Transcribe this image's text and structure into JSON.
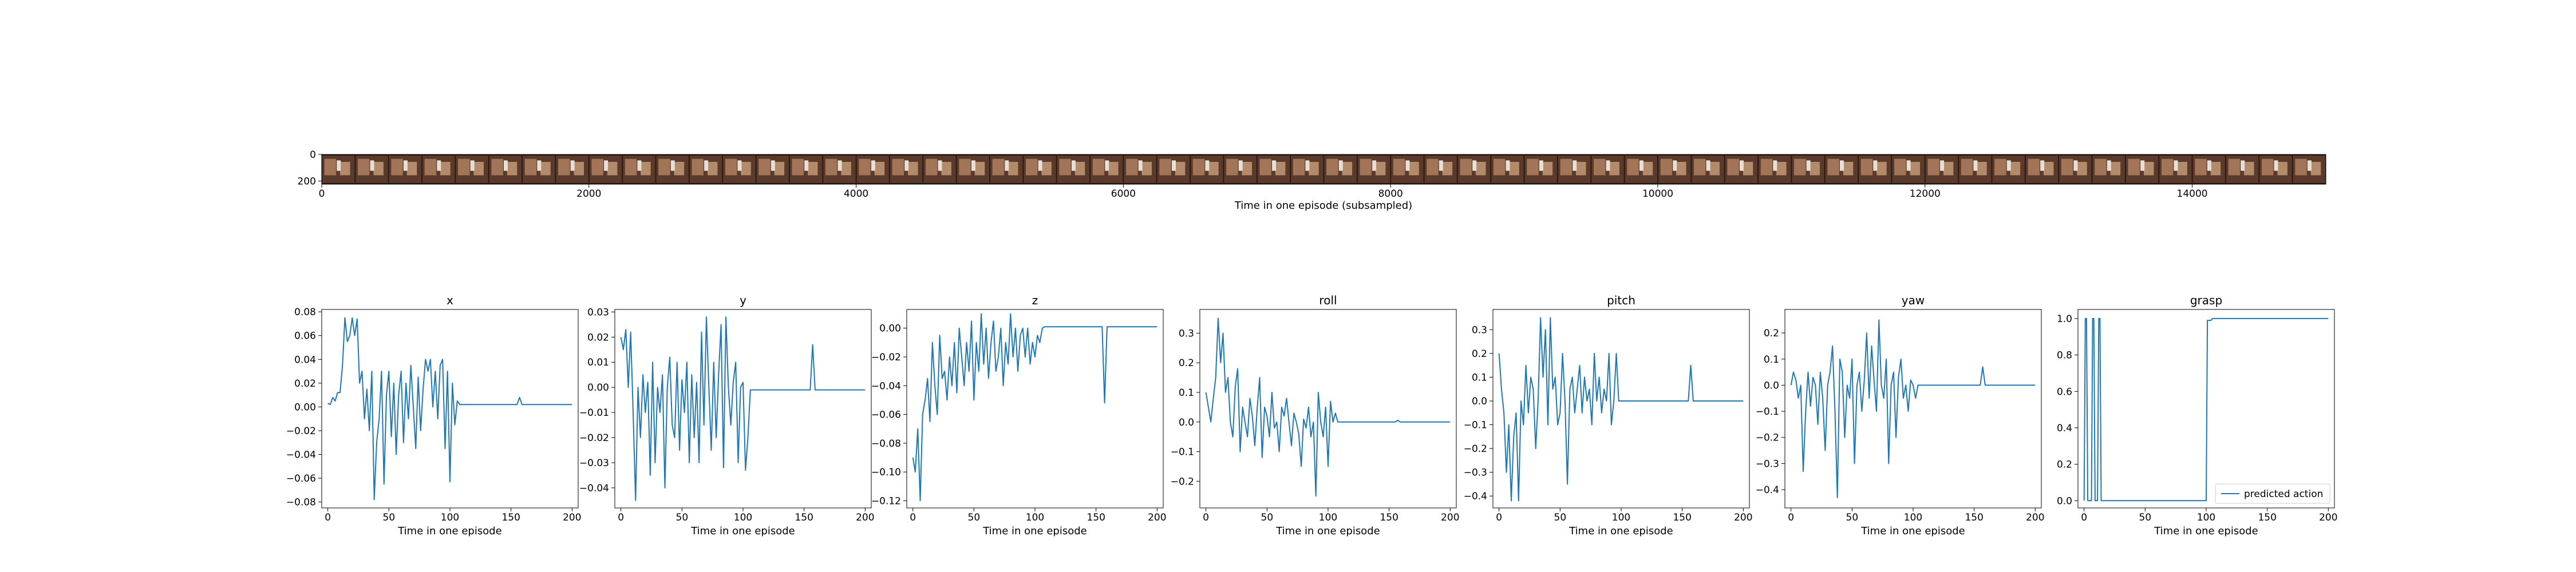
{
  "colors": {
    "line": "#1f77b4",
    "axes": "#000000",
    "frame_bg": "#2a1a14",
    "frame_light": "#b08060"
  },
  "filmstrip": {
    "xlabel": "Time in one episode (subsampled)",
    "xticks": [
      0,
      2000,
      4000,
      6000,
      8000,
      10000,
      12000,
      14000
    ],
    "yticks": [
      0,
      200
    ],
    "xlim": [
      0,
      15000
    ],
    "ylim": [
      0,
      224
    ],
    "frame_count": 60
  },
  "chart_data": [
    {
      "type": "line",
      "title": "x",
      "xlabel": "Time in one episode",
      "ylabel": "",
      "xlim": [
        -5,
        205
      ],
      "ylim": [
        -0.085,
        0.082
      ],
      "xticks": [
        0,
        50,
        100,
        150,
        200
      ],
      "yticks": [
        -0.08,
        -0.06,
        -0.04,
        -0.02,
        0.0,
        0.02,
        0.04,
        0.06,
        0.08
      ],
      "ytick_labels": [
        "−0.08",
        "−0.06",
        "−0.04",
        "−0.02",
        "0.00",
        "0.02",
        "0.04",
        "0.06",
        "0.08"
      ],
      "series": [
        {
          "x": [
            0,
            2,
            4,
            6,
            8,
            10,
            12,
            14,
            16,
            18,
            20,
            22,
            24,
            26,
            28,
            30,
            32,
            34,
            36,
            38,
            40,
            42,
            44,
            46,
            48,
            50,
            52,
            54,
            56,
            58,
            60,
            62,
            64,
            66,
            68,
            70,
            72,
            74,
            76,
            78,
            80,
            82,
            84,
            86,
            88,
            90,
            92,
            94,
            96,
            98,
            100,
            102,
            104,
            106,
            108,
            110,
            120,
            140,
            155,
            157,
            159,
            170,
            185,
            200
          ],
          "y": [
            0.003,
            0.002,
            0.008,
            0.005,
            0.012,
            0.012,
            0.035,
            0.075,
            0.055,
            0.06,
            0.075,
            0.06,
            0.074,
            0.02,
            0.03,
            -0.01,
            0.015,
            -0.02,
            0.03,
            -0.078,
            -0.03,
            -0.01,
            0.03,
            -0.065,
            0.01,
            0.03,
            -0.025,
            0.02,
            -0.04,
            0.01,
            0.03,
            -0.03,
            0.02,
            -0.01,
            0.035,
            0.0,
            -0.035,
            0.025,
            -0.02,
            0.015,
            0.04,
            0.03,
            0.04,
            0.0,
            0.03,
            -0.01,
            0.035,
            0.04,
            -0.035,
            0.03,
            -0.063,
            0.02,
            -0.015,
            0.005,
            0.002,
            0.002,
            0.002,
            0.002,
            0.002,
            0.008,
            0.002,
            0.002,
            0.002,
            0.002
          ]
        }
      ]
    },
    {
      "type": "line",
      "title": "y",
      "xlabel": "Time in one episode",
      "ylabel": "",
      "xlim": [
        -5,
        205
      ],
      "ylim": [
        -0.048,
        0.031
      ],
      "xticks": [
        0,
        50,
        100,
        150,
        200
      ],
      "yticks": [
        -0.04,
        -0.03,
        -0.02,
        -0.01,
        0.0,
        0.01,
        0.02,
        0.03
      ],
      "ytick_labels": [
        "−0.04",
        "−0.03",
        "−0.02",
        "−0.01",
        "0.00",
        "0.01",
        "0.02",
        "0.03"
      ],
      "series": [
        {
          "x": [
            0,
            2,
            4,
            6,
            8,
            10,
            12,
            14,
            16,
            18,
            20,
            22,
            24,
            26,
            28,
            30,
            32,
            34,
            36,
            38,
            40,
            42,
            44,
            46,
            48,
            50,
            52,
            54,
            56,
            58,
            60,
            62,
            64,
            66,
            68,
            70,
            72,
            74,
            76,
            78,
            80,
            82,
            84,
            86,
            88,
            90,
            92,
            94,
            96,
            98,
            100,
            102,
            104,
            106,
            110,
            130,
            155,
            157,
            159,
            170,
            185,
            200
          ],
          "y": [
            0.02,
            0.015,
            0.023,
            0.0,
            0.022,
            -0.01,
            -0.045,
            0.0,
            -0.02,
            0.005,
            -0.01,
            0.002,
            -0.035,
            0.01,
            -0.03,
            0.0,
            -0.01,
            0.005,
            -0.04,
            0.0,
            0.012,
            -0.015,
            -0.02,
            0.01,
            -0.025,
            0.003,
            -0.01,
            0.01,
            -0.03,
            0.005,
            -0.02,
            0.002,
            -0.03,
            0.022,
            -0.015,
            0.028,
            0.0,
            -0.025,
            0.01,
            -0.02,
            0.005,
            0.025,
            -0.032,
            0.028,
            0.0,
            -0.015,
            0.002,
            0.01,
            -0.03,
            0.0,
            0.002,
            -0.033,
            -0.02,
            -0.001,
            -0.001,
            -0.001,
            -0.001,
            0.017,
            -0.001,
            -0.001,
            -0.001,
            -0.001
          ]
        }
      ]
    },
    {
      "type": "line",
      "title": "z",
      "xlabel": "Time in one episode",
      "ylabel": "",
      "xlim": [
        -5,
        205
      ],
      "ylim": [
        -0.125,
        0.013
      ],
      "xticks": [
        0,
        50,
        100,
        150,
        200
      ],
      "yticks": [
        -0.12,
        -0.1,
        -0.08,
        -0.06,
        -0.04,
        -0.02,
        0.0
      ],
      "ytick_labels": [
        "−0.12",
        "−0.10",
        "−0.08",
        "−0.06",
        "−0.04",
        "−0.02",
        "0.00"
      ],
      "series": [
        {
          "x": [
            0,
            2,
            4,
            6,
            8,
            10,
            12,
            14,
            16,
            18,
            20,
            22,
            24,
            26,
            28,
            30,
            32,
            34,
            36,
            38,
            40,
            42,
            44,
            46,
            48,
            50,
            52,
            54,
            56,
            58,
            60,
            62,
            64,
            66,
            68,
            70,
            72,
            74,
            76,
            78,
            80,
            82,
            84,
            86,
            88,
            90,
            92,
            94,
            96,
            98,
            100,
            102,
            104,
            106,
            108,
            110,
            130,
            155,
            157,
            159,
            161,
            170,
            185,
            200
          ],
          "y": [
            -0.09,
            -0.1,
            -0.07,
            -0.12,
            -0.06,
            -0.05,
            -0.035,
            -0.065,
            -0.01,
            -0.04,
            -0.06,
            -0.005,
            -0.035,
            -0.03,
            -0.05,
            -0.02,
            -0.04,
            -0.01,
            -0.045,
            0.0,
            -0.02,
            -0.04,
            -0.01,
            -0.03,
            0.005,
            -0.05,
            -0.01,
            -0.03,
            0.01,
            -0.025,
            0.0,
            -0.035,
            -0.01,
            0.005,
            -0.03,
            -0.02,
            0.0,
            -0.04,
            -0.01,
            -0.025,
            0.01,
            -0.02,
            0.0,
            -0.03,
            -0.005,
            0.0,
            -0.02,
            0.0,
            -0.025,
            -0.01,
            -0.02,
            -0.005,
            -0.01,
            0.0,
            0.001,
            0.001,
            0.001,
            0.001,
            -0.052,
            0.001,
            0.001,
            0.001,
            0.001,
            0.001
          ]
        }
      ]
    },
    {
      "type": "line",
      "title": "roll",
      "xlabel": "Time in one episode",
      "ylabel": "",
      "xlim": [
        -5,
        205
      ],
      "ylim": [
        -0.29,
        0.38
      ],
      "xticks": [
        0,
        50,
        100,
        150,
        200
      ],
      "yticks": [
        -0.2,
        -0.1,
        0.0,
        0.1,
        0.2,
        0.3
      ],
      "ytick_labels": [
        "−0.2",
        "−0.1",
        "0.0",
        "0.1",
        "0.2",
        "0.3"
      ],
      "series": [
        {
          "x": [
            0,
            2,
            4,
            6,
            8,
            10,
            12,
            14,
            16,
            18,
            20,
            22,
            24,
            26,
            28,
            30,
            32,
            34,
            36,
            38,
            40,
            42,
            44,
            46,
            48,
            50,
            52,
            54,
            56,
            58,
            60,
            62,
            64,
            66,
            68,
            70,
            72,
            74,
            76,
            78,
            80,
            82,
            84,
            86,
            88,
            90,
            92,
            94,
            96,
            98,
            100,
            102,
            104,
            106,
            108,
            110,
            130,
            155,
            157,
            159,
            170,
            185,
            200
          ],
          "y": [
            0.1,
            0.05,
            0.0,
            0.08,
            0.15,
            0.35,
            0.2,
            0.3,
            0.1,
            0.15,
            0.0,
            -0.05,
            0.12,
            0.18,
            -0.1,
            0.05,
            0.0,
            -0.05,
            0.08,
            0.02,
            -0.08,
            0.05,
            0.15,
            -0.12,
            0.05,
            0.02,
            -0.05,
            0.1,
            -0.02,
            0.0,
            -0.1,
            0.05,
            0.02,
            0.08,
            0.0,
            -0.08,
            0.03,
            0.0,
            -0.04,
            -0.15,
            0.01,
            -0.02,
            0.05,
            -0.05,
            0.0,
            -0.25,
            0.1,
            0.0,
            -0.05,
            0.05,
            -0.15,
            0.07,
            0.0,
            0.03,
            0.0,
            0.0,
            0.0,
            0.0,
            0.006,
            0.0,
            0.0,
            0.0,
            0.0
          ]
        }
      ]
    },
    {
      "type": "line",
      "title": "pitch",
      "xlabel": "Time in one episode",
      "ylabel": "",
      "xlim": [
        -5,
        205
      ],
      "ylim": [
        -0.45,
        0.385
      ],
      "xticks": [
        0,
        50,
        100,
        150,
        200
      ],
      "yticks": [
        -0.4,
        -0.3,
        -0.2,
        -0.1,
        0.0,
        0.1,
        0.2,
        0.3
      ],
      "ytick_labels": [
        "−0.4",
        "−0.3",
        "−0.2",
        "−0.1",
        "0.0",
        "0.1",
        "0.2",
        "0.3"
      ],
      "series": [
        {
          "x": [
            0,
            2,
            4,
            6,
            8,
            10,
            12,
            14,
            16,
            18,
            20,
            22,
            24,
            26,
            28,
            30,
            32,
            34,
            36,
            38,
            40,
            42,
            44,
            46,
            48,
            50,
            52,
            54,
            56,
            58,
            60,
            62,
            64,
            66,
            68,
            70,
            72,
            74,
            76,
            78,
            80,
            82,
            84,
            86,
            88,
            90,
            92,
            94,
            96,
            98,
            100,
            102,
            104,
            106,
            108,
            110,
            130,
            155,
            157,
            159,
            170,
            185,
            200
          ],
          "y": [
            0.2,
            0.05,
            -0.05,
            -0.3,
            -0.1,
            -0.42,
            -0.15,
            -0.05,
            -0.42,
            0.0,
            -0.1,
            0.15,
            -0.05,
            0.1,
            0.05,
            -0.2,
            0.0,
            0.35,
            0.1,
            0.3,
            -0.1,
            0.35,
            0.05,
            0.1,
            -0.1,
            -0.05,
            0.2,
            0.0,
            -0.35,
            0.05,
            0.1,
            -0.05,
            0.05,
            0.15,
            -0.05,
            0.1,
            0.0,
            0.05,
            -0.1,
            0.2,
            0.0,
            0.1,
            -0.05,
            0.05,
            0.0,
            0.2,
            -0.1,
            0.0,
            0.2,
            0.0,
            0.0,
            0.0,
            0.0,
            0.0,
            0.0,
            0.0,
            0.0,
            0.0,
            0.15,
            0.0,
            0.0,
            0.0,
            0.0
          ]
        }
      ]
    },
    {
      "type": "line",
      "title": "yaw",
      "xlabel": "Time in one episode",
      "ylabel": "",
      "xlim": [
        -5,
        205
      ],
      "ylim": [
        -0.47,
        0.29
      ],
      "xticks": [
        0,
        50,
        100,
        150,
        200
      ],
      "yticks": [
        -0.4,
        -0.3,
        -0.2,
        -0.1,
        0.0,
        0.1,
        0.2
      ],
      "ytick_labels": [
        "−0.4",
        "−0.3",
        "−0.2",
        "−0.1",
        "0.0",
        "0.1",
        "0.2"
      ],
      "series": [
        {
          "x": [
            0,
            2,
            4,
            6,
            8,
            10,
            12,
            14,
            16,
            18,
            20,
            22,
            24,
            26,
            28,
            30,
            32,
            34,
            36,
            38,
            40,
            42,
            44,
            46,
            48,
            50,
            52,
            54,
            56,
            58,
            60,
            62,
            64,
            66,
            68,
            70,
            72,
            74,
            76,
            78,
            80,
            82,
            84,
            86,
            88,
            90,
            92,
            94,
            96,
            98,
            100,
            102,
            104,
            106,
            108,
            110,
            130,
            155,
            157,
            159,
            170,
            185,
            200
          ],
          "y": [
            0.0,
            0.05,
            0.02,
            -0.05,
            0.0,
            -0.33,
            -0.1,
            0.05,
            -0.08,
            0.03,
            0.0,
            -0.15,
            0.05,
            -0.05,
            -0.25,
            0.0,
            0.05,
            0.15,
            -0.1,
            -0.43,
            0.1,
            0.05,
            -0.2,
            0.0,
            -0.05,
            0.1,
            -0.3,
            0.0,
            0.05,
            -0.1,
            0.02,
            0.2,
            -0.05,
            0.15,
            0.02,
            -0.1,
            0.25,
            0.0,
            -0.05,
            0.1,
            -0.3,
            0.0,
            0.05,
            -0.2,
            0.03,
            0.1,
            -0.05,
            0.0,
            -0.1,
            0.02,
            0.0,
            -0.05,
            0.0,
            0.0,
            0.0,
            0.0,
            0.0,
            0.0,
            0.07,
            0.0,
            0.0,
            0.0,
            0.0
          ]
        }
      ]
    },
    {
      "type": "line",
      "title": "grasp",
      "xlabel": "Time in one episode",
      "ylabel": "",
      "xlim": [
        -5,
        205
      ],
      "ylim": [
        -0.04,
        1.05
      ],
      "xticks": [
        0,
        50,
        100,
        150,
        200
      ],
      "yticks": [
        0.0,
        0.2,
        0.4,
        0.6,
        0.8,
        1.0
      ],
      "ytick_labels": [
        "0.0",
        "0.2",
        "0.4",
        "0.6",
        "0.8",
        "1.0"
      ],
      "legend": {
        "entry": "predicted action",
        "position": "lower-right"
      },
      "series": [
        {
          "name": "predicted action",
          "x": [
            0,
            1,
            2,
            3,
            4,
            6,
            7,
            8,
            9,
            10,
            11,
            12,
            13,
            14,
            100,
            101,
            102,
            103,
            104,
            105,
            200
          ],
          "y": [
            0,
            1,
            1,
            0,
            0,
            0,
            1,
            1,
            0,
            0,
            0,
            1,
            1,
            0,
            0,
            0.99,
            0.99,
            0.99,
            0.99,
            1,
            1
          ]
        }
      ]
    }
  ]
}
